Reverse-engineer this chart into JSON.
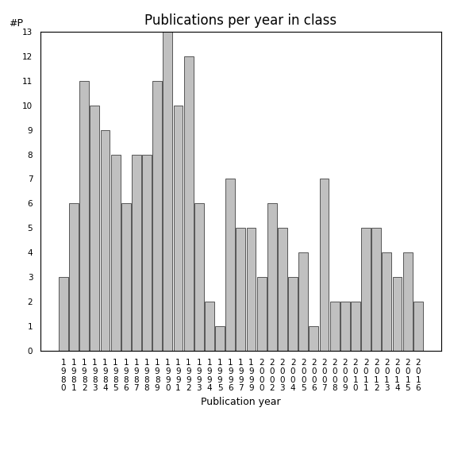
{
  "title": "Publications per year in class",
  "xlabel": "Publication year",
  "ylabel": "#P",
  "years": [
    "1980",
    "1981",
    "1982",
    "1983",
    "1984",
    "1985",
    "1986",
    "1987",
    "1988",
    "1989",
    "1990",
    "1991",
    "1992",
    "1993",
    "1994",
    "1995",
    "1996",
    "1997",
    "1999",
    "2000",
    "2002",
    "2003",
    "2004",
    "2005",
    "2006",
    "2007",
    "2008",
    "2009",
    "2010",
    "2011",
    "2012",
    "2013",
    "2014",
    "2015",
    "2016"
  ],
  "values": [
    3,
    6,
    11,
    10,
    9,
    8,
    6,
    8,
    8,
    11,
    13,
    10,
    12,
    6,
    2,
    1,
    7,
    5,
    5,
    3,
    6,
    5,
    3,
    4,
    1,
    7,
    2,
    2,
    2,
    5,
    5,
    4,
    3,
    4,
    2
  ],
  "bar_color": "#c0c0c0",
  "bar_edgecolor": "#404040",
  "ylim": [
    0,
    13
  ],
  "yticks": [
    0,
    1,
    2,
    3,
    4,
    5,
    6,
    7,
    8,
    9,
    10,
    11,
    12,
    13
  ],
  "background_color": "#ffffff",
  "title_fontsize": 12,
  "label_fontsize": 9,
  "tick_fontsize": 7.5
}
